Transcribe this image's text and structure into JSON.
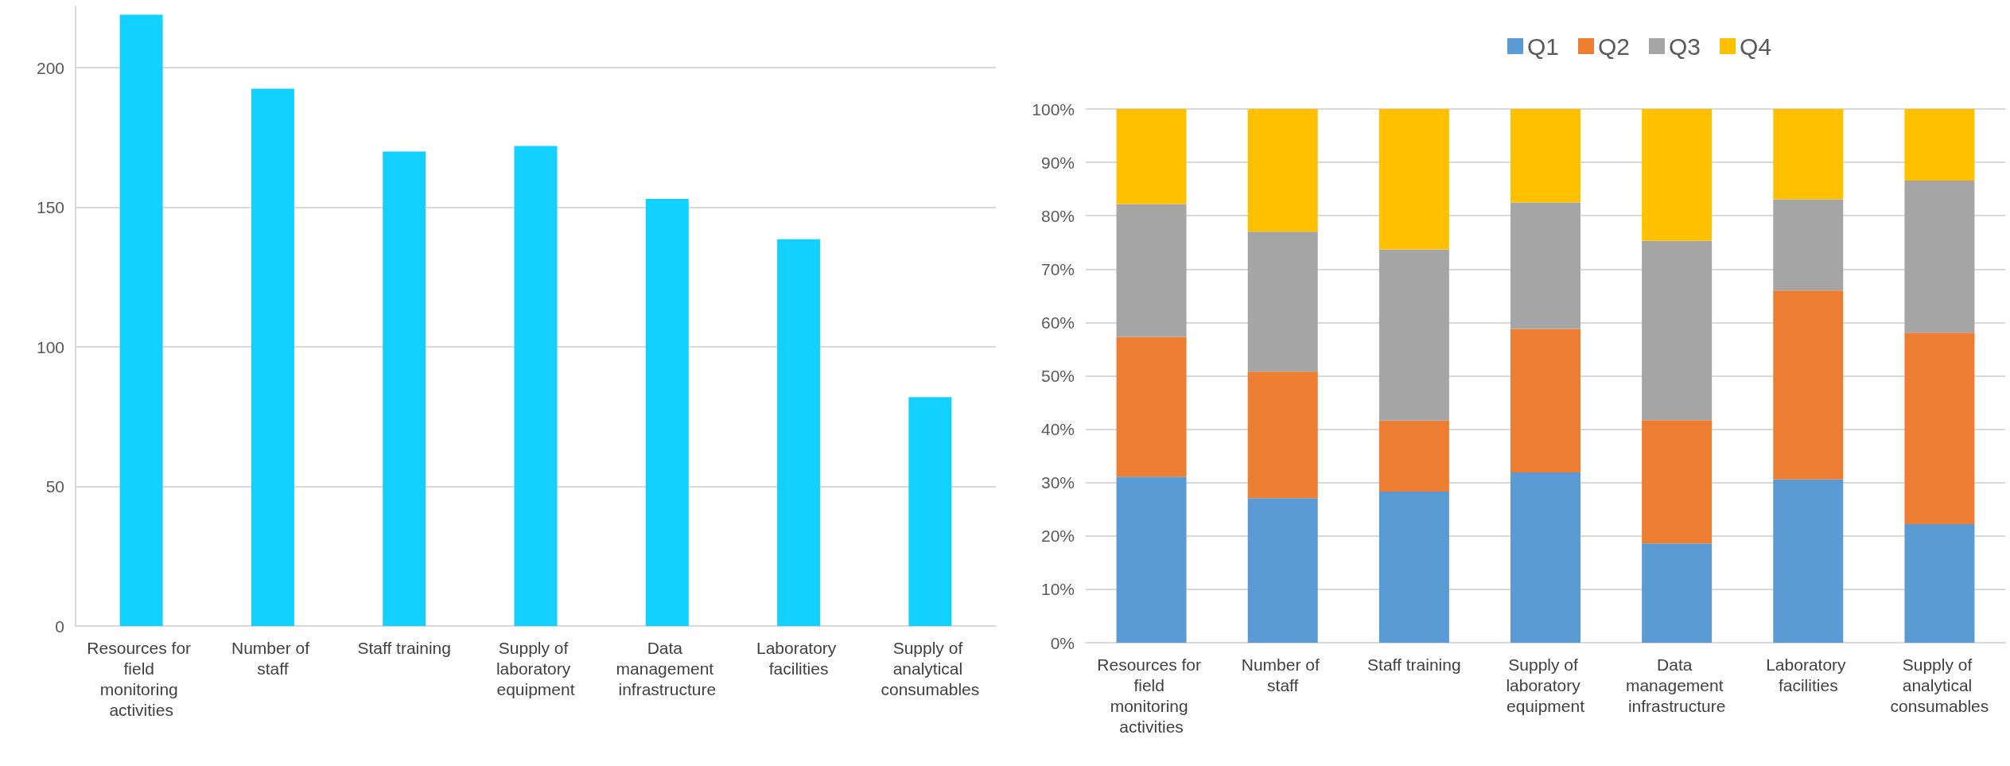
{
  "chart_data": [
    {
      "type": "bar",
      "categories": [
        "Resources for field monitoring activities",
        "Number of staff",
        "Staff training",
        "Supply of laboratory equipment",
        "Data management infrastructure",
        "Laboratory facilities",
        "Supply of analytical consumables"
      ],
      "series": [
        {
          "color": "#12d0ff",
          "values": [
            219,
            192.5,
            170,
            172,
            153,
            138.6,
            82
          ]
        }
      ],
      "ylim": [
        0,
        222
      ],
      "yticks": [
        0,
        50,
        100,
        150,
        200
      ],
      "grid": "y",
      "legend": false
    },
    {
      "type": "bar",
      "stacked": true,
      "categories": [
        "Resources for field monitoring activities",
        "Number of staff",
        "Staff training",
        "Supply of laboratory equipment",
        "Data management infrastructure",
        "Laboratory facilities",
        "Supply of analytical consumables"
      ],
      "series": [
        {
          "name": "Q1",
          "color": "#5b9bd5",
          "values": [
            31.1,
            27.1,
            28.3,
            31.9,
            18.6,
            30.6,
            22.2
          ]
        },
        {
          "name": "Q2",
          "color": "#ed7d31",
          "values": [
            26.2,
            23.7,
            13.3,
            26.9,
            23.1,
            35.4,
            35.9
          ]
        },
        {
          "name": "Q3",
          "color": "#a5a5a5",
          "values": [
            24.9,
            26.2,
            32.1,
            23.7,
            33.6,
            17.1,
            28.5
          ]
        },
        {
          "name": "Q4",
          "color": "#ffc000",
          "values": [
            17.8,
            23.0,
            26.3,
            17.5,
            24.7,
            16.9,
            13.4
          ]
        }
      ],
      "ylim": [
        0,
        100
      ],
      "yticks": [
        {
          "value": 0,
          "label": "0%"
        },
        {
          "value": 10,
          "label": "10%"
        },
        {
          "value": 20,
          "label": "20%"
        },
        {
          "value": 30,
          "label": "30%"
        },
        {
          "value": 40,
          "label": "40%"
        },
        {
          "value": 50,
          "label": "50%"
        },
        {
          "value": 60,
          "label": "60%"
        },
        {
          "value": 70,
          "label": "70%"
        },
        {
          "value": 80,
          "label": "80%"
        },
        {
          "value": 90,
          "label": "90%"
        },
        {
          "value": 100,
          "label": "100%"
        }
      ],
      "grid": "y",
      "legend": "top"
    }
  ]
}
